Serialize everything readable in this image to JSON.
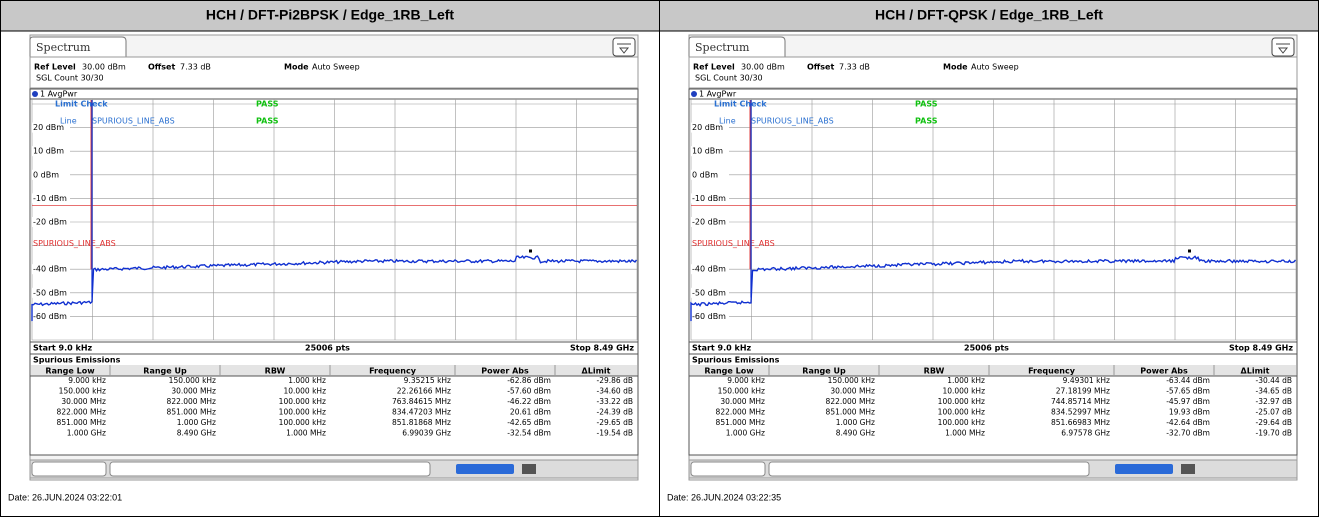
{
  "panels": [
    {
      "header": "HCH / DFT-Pi2BPSK / Edge_1RB_Left",
      "tab": "Spectrum",
      "info": {
        "ref_level_label": "Ref Level",
        "ref_level": "30.00 dBm",
        "offset_label": "Offset",
        "offset": "7.33 dB",
        "mode_label": "Mode",
        "mode": "Auto Sweep",
        "count": "SGL Count 30/30"
      },
      "trace": "1 AvgPwr",
      "limit_check": "Limit Check",
      "limit_check_result": "PASS",
      "line": "Line",
      "line_name": "SPURIOUS_LINE_ABS",
      "line_result": "PASS",
      "limit_label": "SPURIOUS_LINE_ABS",
      "y_labels": [
        "20 dBm",
        "10 dBm",
        "0 dBm",
        "-10 dBm",
        "-20 dBm",
        "-40 dBm",
        "-50 dBm",
        "-60 dBm"
      ],
      "start": "Start 9.0 kHz",
      "points": "25006 pts",
      "stop": "Stop 8.49 GHz",
      "table": {
        "title": "Spurious Emissions",
        "columns": [
          "Range Low",
          "Range Up",
          "RBW",
          "Frequency",
          "Power Abs",
          "ΔLimit"
        ],
        "rows": [
          [
            "9.000 kHz",
            "150.000 kHz",
            "1.000 kHz",
            "9.35215 kHz",
            "-62.86 dBm",
            "-29.86 dB"
          ],
          [
            "150.000 kHz",
            "30.000 MHz",
            "10.000 kHz",
            "22.26166 MHz",
            "-57.60 dBm",
            "-34.60 dB"
          ],
          [
            "30.000 MHz",
            "822.000 MHz",
            "100.000 kHz",
            "763.84615 MHz",
            "-46.22 dBm",
            "-33.22 dB"
          ],
          [
            "822.000 MHz",
            "851.000 MHz",
            "100.000 kHz",
            "834.47203 MHz",
            "20.61 dBm",
            "-24.39 dB"
          ],
          [
            "851.000 MHz",
            "1.000 GHz",
            "100.000 kHz",
            "851.81868 MHz",
            "-42.65 dBm",
            "-29.65 dB"
          ],
          [
            "1.000 GHz",
            "8.490 GHz",
            "1.000 MHz",
            "6.99039 GHz",
            "-32.54 dBm",
            "-19.54 dB"
          ]
        ]
      },
      "date": "Date: 26.JUN.2024  03:22:01"
    },
    {
      "header": "HCH /  DFT-QPSK / Edge_1RB_Left",
      "tab": "Spectrum",
      "info": {
        "ref_level_label": "Ref Level",
        "ref_level": "30.00 dBm",
        "offset_label": "Offset",
        "offset": "7.33 dB",
        "mode_label": "Mode",
        "mode": "Auto Sweep",
        "count": "SGL Count 30/30"
      },
      "trace": "1 AvgPwr",
      "limit_check": "Limit Check",
      "limit_check_result": "PASS",
      "line": "Line",
      "line_name": "SPURIOUS_LINE_ABS",
      "line_result": "PASS",
      "limit_label": "SPURIOUS_LINE_ABS",
      "y_labels": [
        "20 dBm",
        "10 dBm",
        "0 dBm",
        "-10 dBm",
        "-20 dBm",
        "-40 dBm",
        "-50 dBm",
        "-60 dBm"
      ],
      "start": "Start 9.0 kHz",
      "points": "25006 pts",
      "stop": "Stop 8.49 GHz",
      "table": {
        "title": "Spurious Emissions",
        "columns": [
          "Range Low",
          "Range Up",
          "RBW",
          "Frequency",
          "Power Abs",
          "ΔLimit"
        ],
        "rows": [
          [
            "9.000 kHz",
            "150.000 kHz",
            "1.000 kHz",
            "9.49301 kHz",
            "-63.44 dBm",
            "-30.44 dB"
          ],
          [
            "150.000 kHz",
            "30.000 MHz",
            "10.000 kHz",
            "27.18199 MHz",
            "-57.65 dBm",
            "-34.65 dB"
          ],
          [
            "30.000 MHz",
            "822.000 MHz",
            "100.000 kHz",
            "744.85714 MHz",
            "-45.97 dBm",
            "-32.97 dB"
          ],
          [
            "822.000 MHz",
            "851.000 MHz",
            "100.000 kHz",
            "834.52997 MHz",
            "19.93 dBm",
            "-25.07 dB"
          ],
          [
            "851.000 MHz",
            "1.000 GHz",
            "100.000 kHz",
            "851.66983 MHz",
            "-42.64 dBm",
            "-29.64 dB"
          ],
          [
            "1.000 GHz",
            "8.490 GHz",
            "1.000 MHz",
            "6.97578 GHz",
            "-32.70 dBm",
            "-19.70 dB"
          ]
        ]
      },
      "date": "Date: 26.JUN.2024  03:22:35"
    }
  ]
}
